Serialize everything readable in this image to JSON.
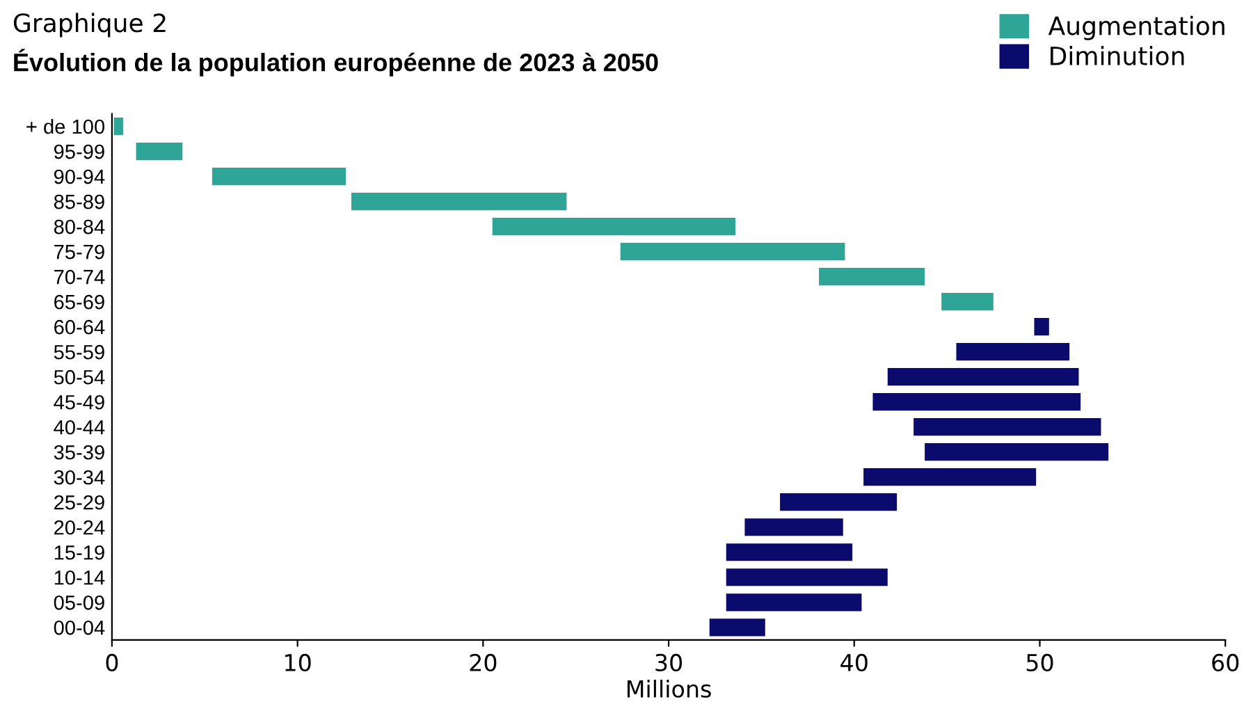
{
  "chart_data": {
    "type": "bar",
    "orientation": "horizontal",
    "title": "Graphique 2",
    "subtitle": "Évolution de la population européenne de 2023 à 2050",
    "xlabel": "Millions",
    "categories": [
      "+ de 100",
      "95-99",
      "90-94",
      "85-89",
      "80-84",
      "75-79",
      "70-74",
      "65-69",
      "60-64",
      "55-59",
      "50-54",
      "45-49",
      "40-44",
      "35-39",
      "30-34",
      "25-29",
      "20-24",
      "15-19",
      "10-14",
      "05-09",
      "00-04"
    ],
    "series": [
      {
        "name": "Augmentation",
        "color": "#2ea597",
        "base": [
          0.1,
          1.3,
          5.4,
          12.9,
          20.5,
          27.4,
          38.1,
          44.7,
          null,
          null,
          null,
          null,
          null,
          null,
          null,
          null,
          null,
          null,
          null,
          null,
          null
        ],
        "values": [
          0.5,
          2.5,
          7.2,
          11.6,
          13.1,
          12.1,
          5.7,
          2.8,
          null,
          null,
          null,
          null,
          null,
          null,
          null,
          null,
          null,
          null,
          null,
          null,
          null
        ]
      },
      {
        "name": "Diminution",
        "color": "#0b0b6e",
        "base": [
          null,
          null,
          null,
          null,
          null,
          null,
          null,
          null,
          49.7,
          45.5,
          41.8,
          41.0,
          43.2,
          43.8,
          40.5,
          36.0,
          34.1,
          33.1,
          33.1,
          33.1,
          32.2
        ],
        "values": [
          null,
          null,
          null,
          null,
          null,
          null,
          null,
          null,
          0.8,
          6.1,
          10.3,
          11.2,
          10.1,
          9.9,
          9.3,
          6.3,
          5.3,
          6.8,
          8.7,
          7.3,
          3.0
        ]
      }
    ],
    "xlim": [
      0,
      60
    ],
    "xticks": [
      0,
      10,
      20,
      30,
      40,
      50,
      60
    ],
    "grid": false,
    "legend": "top right"
  }
}
